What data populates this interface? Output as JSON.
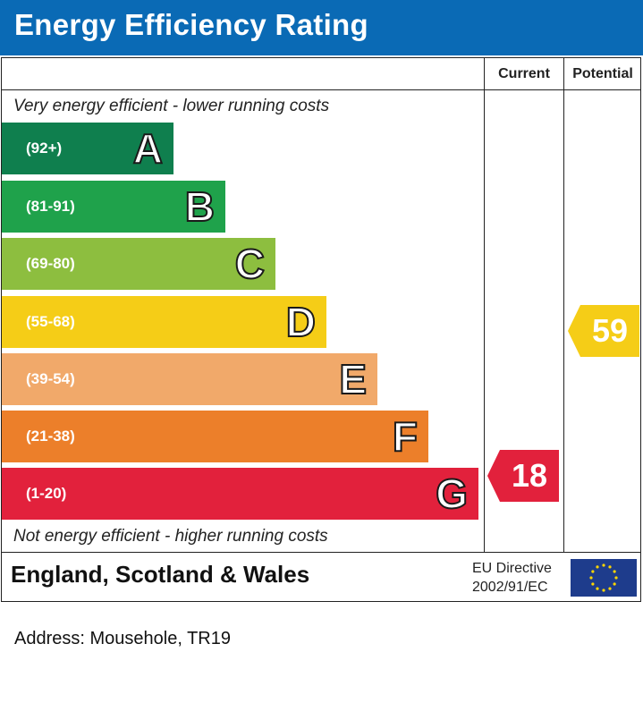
{
  "header": {
    "title": "Energy Efficiency Rating"
  },
  "columns": {
    "current": "Current",
    "potential": "Potential"
  },
  "notes": {
    "top": "Very energy efficient - lower running costs",
    "bottom": "Not energy efficient - higher running costs"
  },
  "colors": {
    "header": "#0a6ab5",
    "A": "#0f7f4e",
    "B": "#1fa24b",
    "C": "#8dbe3f",
    "D": "#f5cd17",
    "E": "#f1a96a",
    "F": "#ec7f2a",
    "G": "#e2213c"
  },
  "chart_data": {
    "type": "bar",
    "title": "Energy Efficiency Rating",
    "categories": [
      "A",
      "B",
      "C",
      "D",
      "E",
      "F",
      "G"
    ],
    "ranges": [
      "(92+)",
      "(81-91)",
      "(69-80)",
      "(55-68)",
      "(39-54)",
      "(21-38)",
      "(1-20)"
    ],
    "current": {
      "value": "18",
      "band": "G"
    },
    "potential": {
      "value": "59",
      "band": "D"
    }
  },
  "footer": {
    "region": "England, Scotland & Wales",
    "directive_line1": "EU Directive",
    "directive_line2": "2002/91/EC",
    "flag_icon": "eu-flag-icon"
  },
  "address": "Address: Mousehole, TR19"
}
